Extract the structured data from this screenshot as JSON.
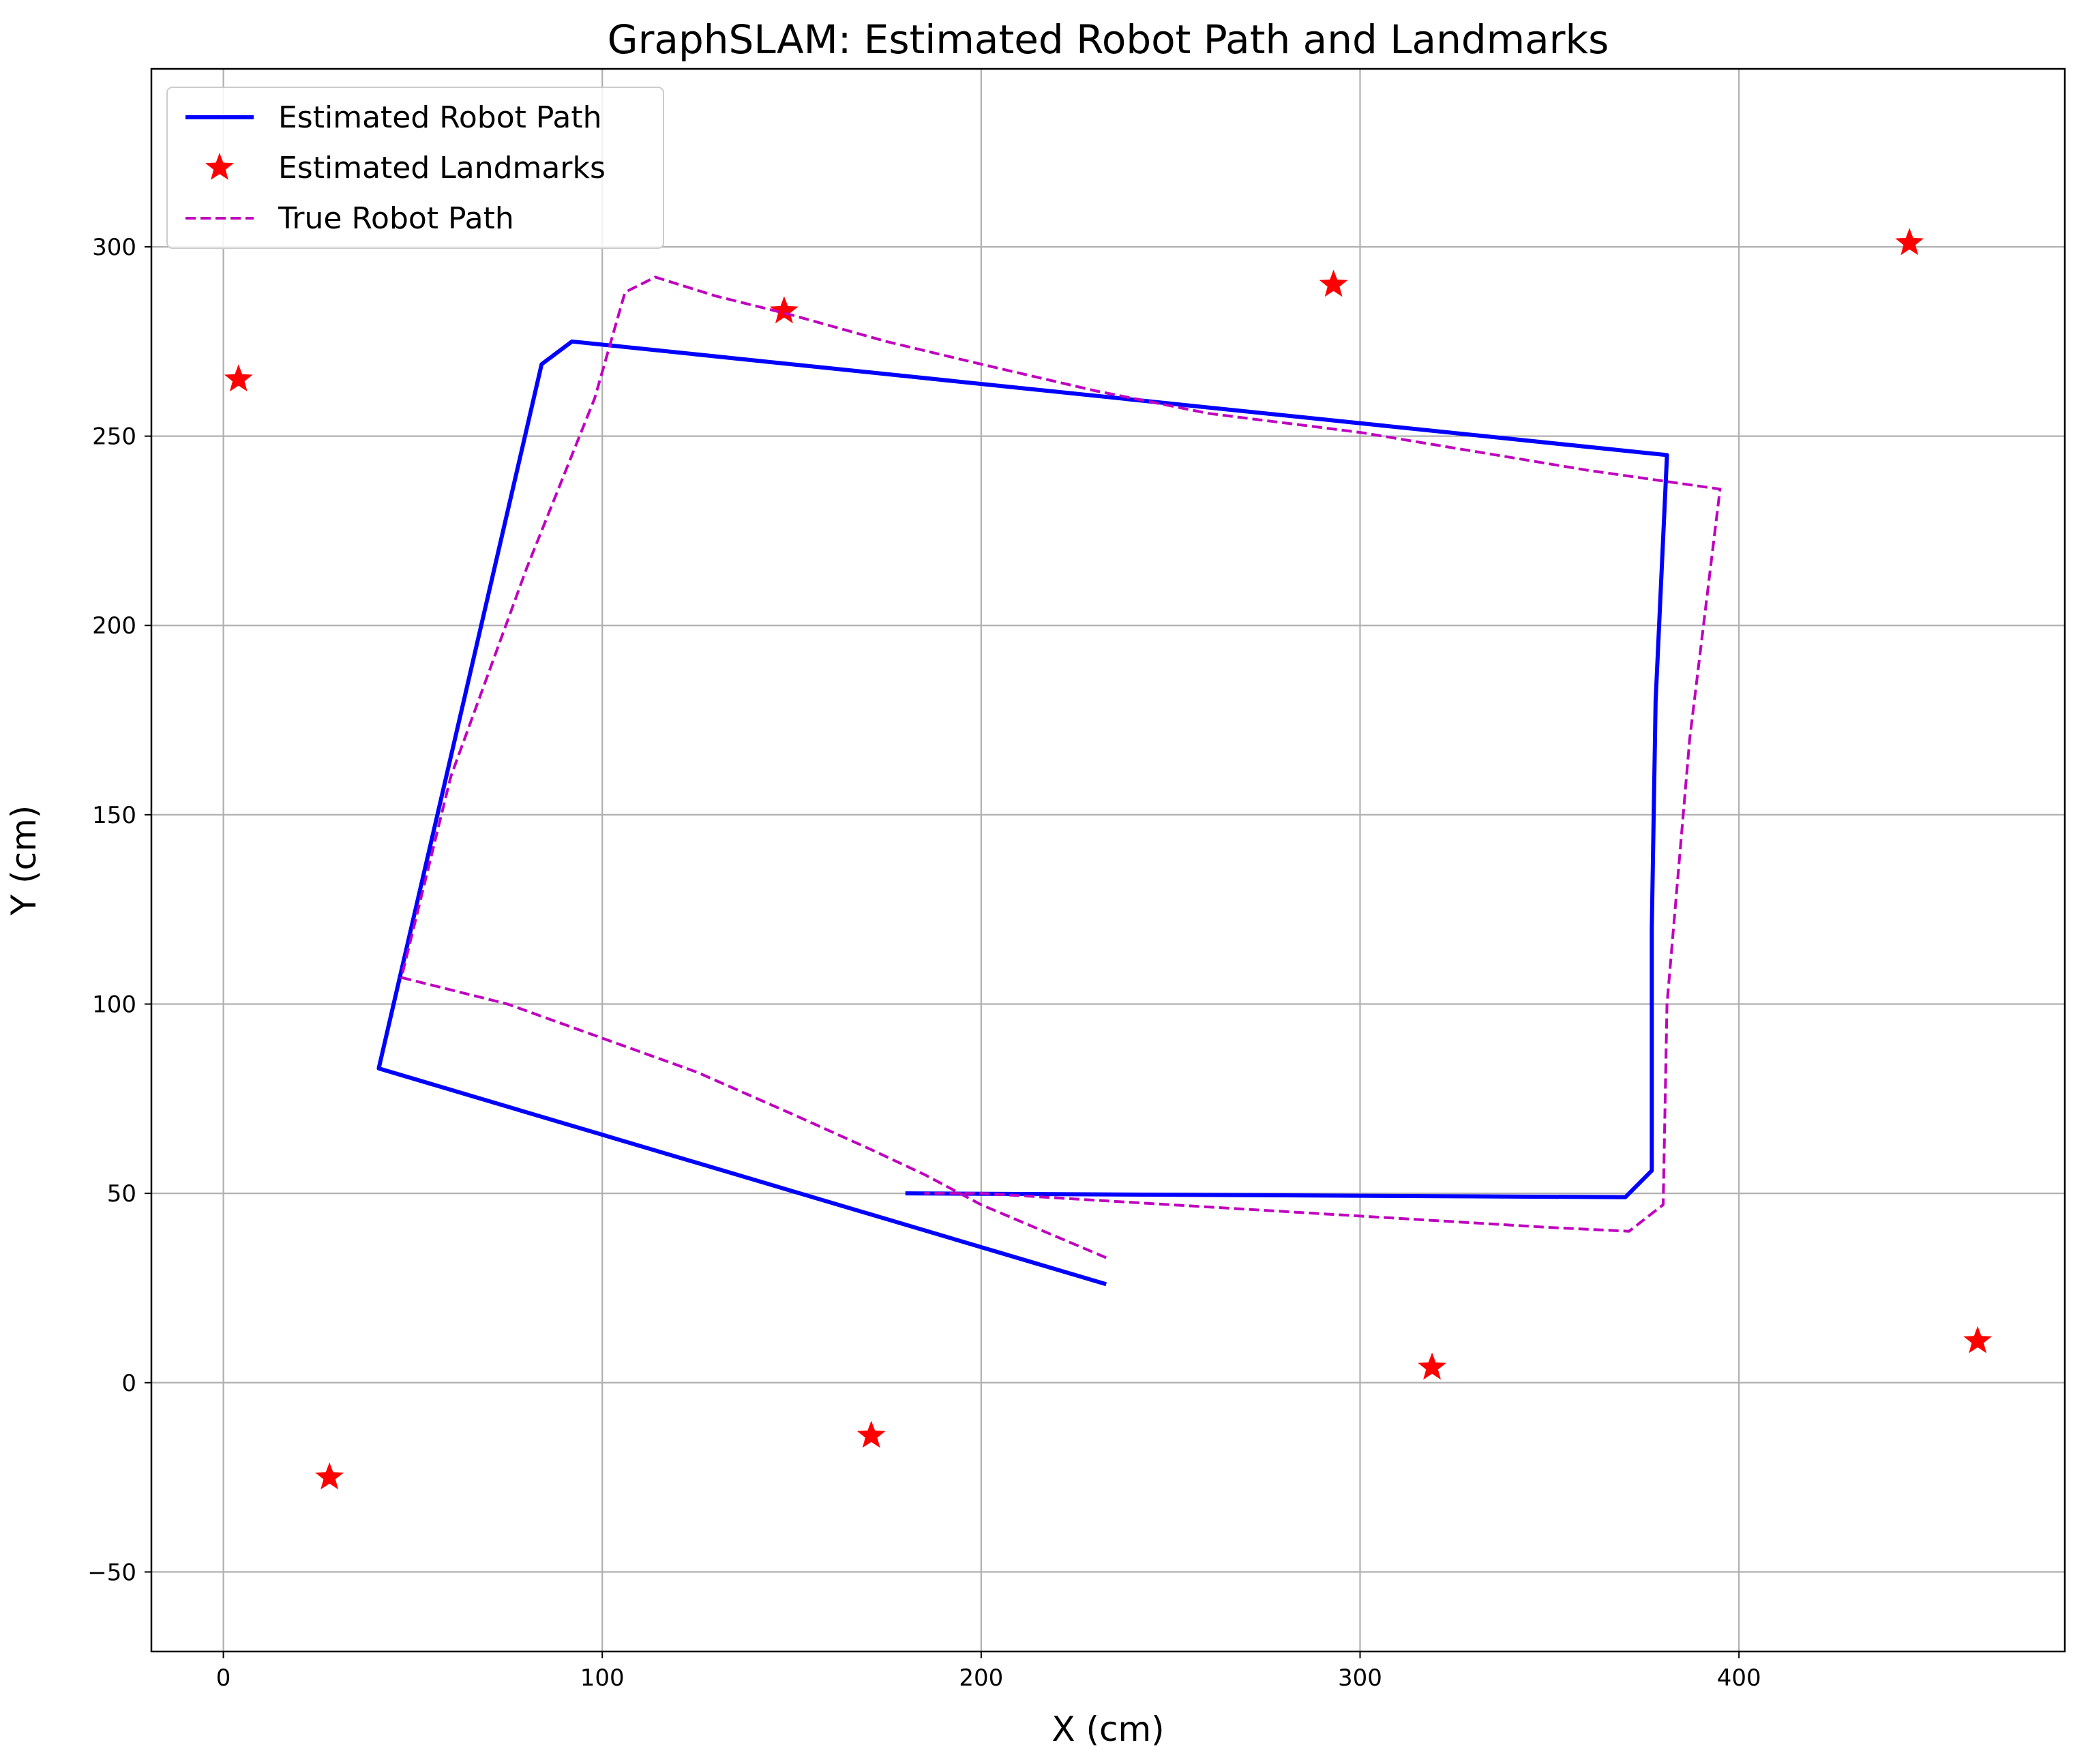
{
  "chart_data": {
    "type": "line",
    "title": "GraphSLAM: Estimated Robot Path and Landmarks",
    "xlabel": "X (cm)",
    "ylabel": "Y (cm)",
    "xlim": [
      -19,
      486
    ],
    "ylim": [
      -71,
      347
    ],
    "x_ticks": [
      0,
      100,
      200,
      300,
      400
    ],
    "y_ticks": [
      -50,
      0,
      50,
      100,
      150,
      200,
      250,
      300
    ],
    "grid": true,
    "legend_position": "top-left",
    "series": [
      {
        "name": "Estimated Robot Path",
        "type": "line",
        "style": "solid",
        "color": "#0000ff",
        "points": [
          [
            180,
            50
          ],
          [
            370,
            49
          ],
          [
            377,
            56
          ],
          [
            377,
            120
          ],
          [
            378,
            180
          ],
          [
            381,
            245
          ],
          [
            92,
            275
          ],
          [
            84,
            269
          ],
          [
            41,
            83
          ],
          [
            233,
            26
          ]
        ]
      },
      {
        "name": "Estimated Landmarks",
        "type": "scatter",
        "marker": "star",
        "color": "#ff0000",
        "points": [
          [
            4,
            265
          ],
          [
            28,
            -25
          ],
          [
            148,
            283
          ],
          [
            171,
            -14
          ],
          [
            293,
            290
          ],
          [
            319,
            4
          ],
          [
            445,
            301
          ],
          [
            463,
            11
          ]
        ]
      },
      {
        "name": "True Robot Path",
        "type": "line",
        "style": "dashed",
        "color": "#bf00bf",
        "points": [
          [
            233,
            33
          ],
          [
            200,
            47
          ],
          [
            185,
            55
          ],
          [
            170,
            62
          ],
          [
            150,
            71
          ],
          [
            125,
            82
          ],
          [
            100,
            91
          ],
          [
            75,
            100
          ],
          [
            47,
            107
          ],
          [
            60,
            160
          ],
          [
            80,
            215
          ],
          [
            98,
            260
          ],
          [
            106,
            288
          ],
          [
            114,
            292
          ],
          [
            130,
            287
          ],
          [
            150,
            282
          ],
          [
            175,
            275
          ],
          [
            200,
            269
          ],
          [
            230,
            262
          ],
          [
            260,
            256
          ],
          [
            300,
            251
          ],
          [
            330,
            246
          ],
          [
            360,
            241
          ],
          [
            395,
            236
          ],
          [
            387,
            170
          ],
          [
            381,
            100
          ],
          [
            380,
            47
          ],
          [
            371,
            40
          ],
          [
            350,
            41
          ],
          [
            300,
            44
          ],
          [
            250,
            47
          ],
          [
            200,
            50
          ],
          [
            185,
            50
          ]
        ]
      }
    ]
  }
}
